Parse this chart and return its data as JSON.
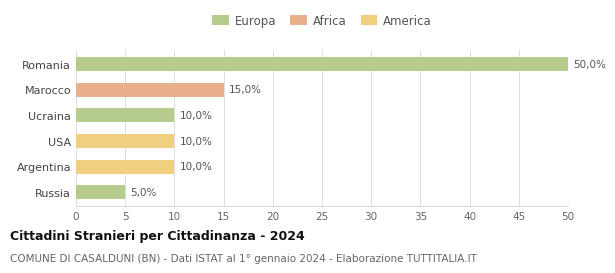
{
  "categories": [
    "Romania",
    "Marocco",
    "Ucraina",
    "USA",
    "Argentina",
    "Russia"
  ],
  "values": [
    50.0,
    15.0,
    10.0,
    10.0,
    10.0,
    5.0
  ],
  "colors": [
    "#b5cc8e",
    "#e8b08a",
    "#b5cc8e",
    "#f0d080",
    "#f0d080",
    "#b5cc8e"
  ],
  "labels": [
    "50,0%",
    "15,0%",
    "10,0%",
    "10,0%",
    "10,0%",
    "5,0%"
  ],
  "xlim": [
    0,
    50
  ],
  "xticks": [
    0,
    5,
    10,
    15,
    20,
    25,
    30,
    35,
    40,
    45,
    50
  ],
  "legend_items": [
    {
      "label": "Europa",
      "color": "#b5cc8e"
    },
    {
      "label": "Africa",
      "color": "#e8b08a"
    },
    {
      "label": "America",
      "color": "#f0d080"
    }
  ],
  "title": "Cittadini Stranieri per Cittadinanza - 2024",
  "subtitle": "COMUNE DI CASALDUNI (BN) - Dati ISTAT al 1° gennaio 2024 - Elaborazione TUTTITALIA.IT",
  "background_color": "#ffffff",
  "bar_height": 0.55,
  "grid_color": "#dddddd",
  "label_fontsize": 7.5,
  "tick_fontsize": 7.5,
  "ylabel_fontsize": 8,
  "title_fontsize": 9,
  "subtitle_fontsize": 7.5,
  "legend_fontsize": 8.5
}
